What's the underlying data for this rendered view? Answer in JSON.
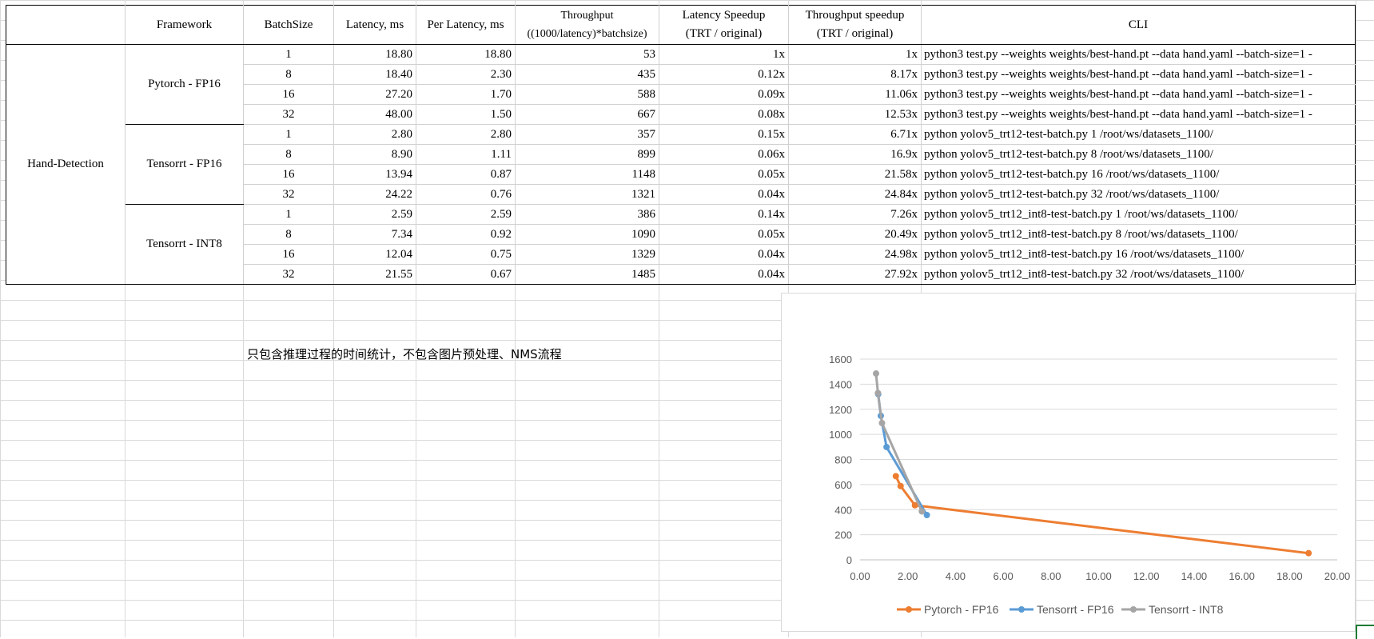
{
  "table": {
    "headers": [
      {
        "l1": "",
        "l2": ""
      },
      {
        "l1": "Framework",
        "l2": ""
      },
      {
        "l1": "BatchSize",
        "l2": ""
      },
      {
        "l1": "Latency, ms",
        "l2": ""
      },
      {
        "l1": "Per Latency, ms",
        "l2": ""
      },
      {
        "l1": "Throughput",
        "l2": "((1000/latency)*batchsize)"
      },
      {
        "l1": "Latency Speedup",
        "l2": "(TRT / original)"
      },
      {
        "l1": "Throughput speedup",
        "l2": "(TRT / original)"
      },
      {
        "l1": "CLI",
        "l2": ""
      }
    ],
    "task": "Hand-Detection",
    "groups": [
      {
        "framework": "Pytorch - FP16",
        "rows": [
          {
            "batch": "1",
            "latency": "18.80",
            "per_latency": "18.80",
            "throughput": "53",
            "lat_speedup": "1x",
            "thr_speedup": "1x",
            "cli": "python3 test.py --weights weights/best-hand.pt --data hand.yaml --batch-size=1 -"
          },
          {
            "batch": "8",
            "latency": "18.40",
            "per_latency": "2.30",
            "throughput": "435",
            "lat_speedup": "0.12x",
            "thr_speedup": "8.17x",
            "cli": "python3 test.py --weights weights/best-hand.pt --data hand.yaml --batch-size=1 -"
          },
          {
            "batch": "16",
            "latency": "27.20",
            "per_latency": "1.70",
            "throughput": "588",
            "lat_speedup": "0.09x",
            "thr_speedup": "11.06x",
            "cli": "python3 test.py --weights weights/best-hand.pt --data hand.yaml --batch-size=1 -"
          },
          {
            "batch": "32",
            "latency": "48.00",
            "per_latency": "1.50",
            "throughput": "667",
            "lat_speedup": "0.08x",
            "thr_speedup": "12.53x",
            "cli": "python3 test.py --weights weights/best-hand.pt --data hand.yaml --batch-size=1 -"
          }
        ]
      },
      {
        "framework": "Tensorrt - FP16",
        "rows": [
          {
            "batch": "1",
            "latency": "2.80",
            "per_latency": "2.80",
            "throughput": "357",
            "lat_speedup": "0.15x",
            "thr_speedup": "6.71x",
            "cli": "python yolov5_trt12-test-batch.py 1 /root/ws/datasets_1100/"
          },
          {
            "batch": "8",
            "latency": "8.90",
            "per_latency": "1.11",
            "throughput": "899",
            "lat_speedup": "0.06x",
            "thr_speedup": "16.9x",
            "cli": "python yolov5_trt12-test-batch.py 8 /root/ws/datasets_1100/"
          },
          {
            "batch": "16",
            "latency": "13.94",
            "per_latency": "0.87",
            "throughput": "1148",
            "lat_speedup": "0.05x",
            "thr_speedup": "21.58x",
            "cli": "python yolov5_trt12-test-batch.py 16 /root/ws/datasets_1100/"
          },
          {
            "batch": "32",
            "latency": "24.22",
            "per_latency": "0.76",
            "throughput": "1321",
            "lat_speedup": "0.04x",
            "thr_speedup": "24.84x",
            "cli": "python yolov5_trt12-test-batch.py 32 /root/ws/datasets_1100/"
          }
        ]
      },
      {
        "framework": "Tensorrt - INT8",
        "rows": [
          {
            "batch": "1",
            "latency": "2.59",
            "per_latency": "2.59",
            "throughput": "386",
            "lat_speedup": "0.14x",
            "thr_speedup": "7.26x",
            "cli": "python yolov5_trt12_int8-test-batch.py 1 /root/ws/datasets_1100/"
          },
          {
            "batch": "8",
            "latency": "7.34",
            "per_latency": "0.92",
            "throughput": "1090",
            "lat_speedup": "0.05x",
            "thr_speedup": "20.49x",
            "cli": "python yolov5_trt12_int8-test-batch.py 8 /root/ws/datasets_1100/"
          },
          {
            "batch": "16",
            "latency": "12.04",
            "per_latency": "0.75",
            "throughput": "1329",
            "lat_speedup": "0.04x",
            "thr_speedup": "24.98x",
            "cli": "python yolov5_trt12_int8-test-batch.py 16 /root/ws/datasets_1100/"
          },
          {
            "batch": "32",
            "latency": "21.55",
            "per_latency": "0.67",
            "throughput": "1485",
            "lat_speedup": "0.04x",
            "thr_speedup": "27.92x",
            "cli": "python yolov5_trt12_int8-test-batch.py 32 /root/ws/datasets_1100/"
          }
        ]
      }
    ]
  },
  "note": "只包含推理过程的时间统计，不包含图片预处理、NMS流程",
  "chart_data": {
    "type": "scatter",
    "title": "",
    "xlabel": "",
    "ylabel": "",
    "xlim": [
      0,
      20
    ],
    "ylim": [
      0,
      1600
    ],
    "x_ticks": [
      "0.00",
      "2.00",
      "4.00",
      "6.00",
      "8.00",
      "10.00",
      "12.00",
      "14.00",
      "16.00",
      "18.00",
      "20.00"
    ],
    "y_ticks": [
      "0",
      "200",
      "400",
      "600",
      "800",
      "1000",
      "1200",
      "1400",
      "1600"
    ],
    "grid": true,
    "legend": "bottom",
    "series": [
      {
        "name": "Pytorch - FP16",
        "color": "#ed7d31",
        "x": [
          18.8,
          2.3,
          1.7,
          1.5
        ],
        "y": [
          53,
          435,
          588,
          667
        ]
      },
      {
        "name": "Tensorrt - FP16",
        "color": "#5b9bd5",
        "x": [
          2.8,
          1.11,
          0.87,
          0.76
        ],
        "y": [
          357,
          899,
          1148,
          1321
        ]
      },
      {
        "name": "Tensorrt - INT8",
        "color": "#a5a5a5",
        "x": [
          2.59,
          0.92,
          0.75,
          0.67
        ],
        "y": [
          386,
          1090,
          1329,
          1485
        ]
      }
    ]
  }
}
